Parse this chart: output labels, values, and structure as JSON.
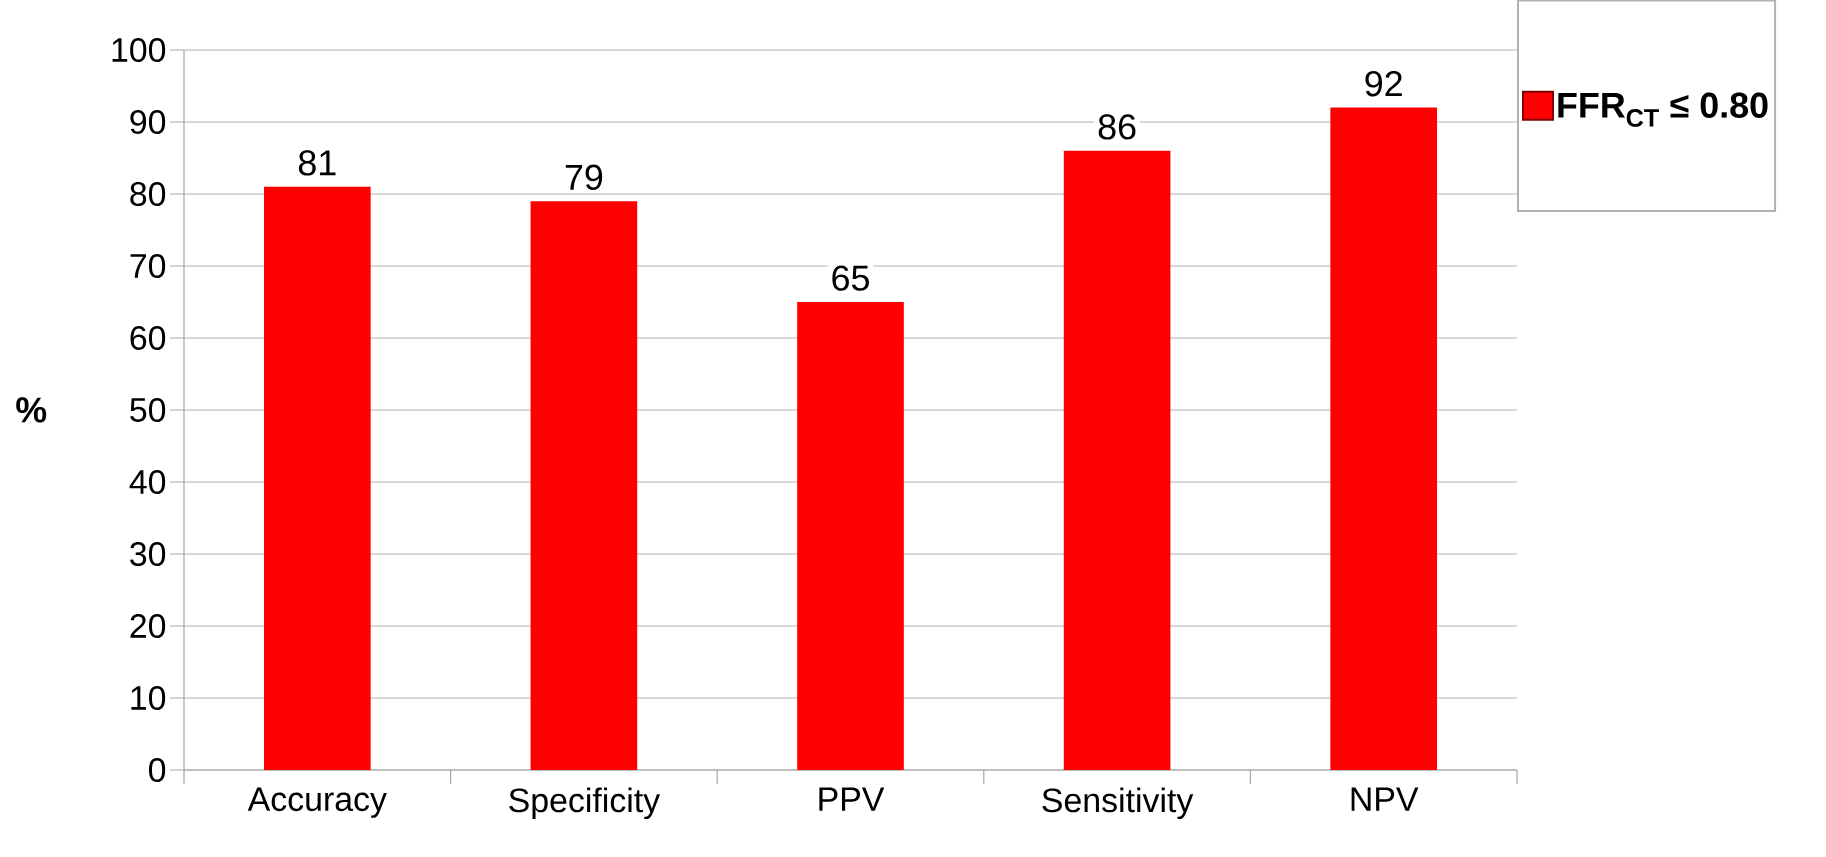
{
  "chart_data": {
    "type": "bar",
    "ylabel": "%",
    "categories": [
      "Accuracy",
      "Specificity",
      "PPV",
      "Sensitivity",
      "NPV"
    ],
    "series": [
      {
        "name": "FFR$_{CT}$ ≤ 0.80",
        "color": "#ff0000",
        "values": [
          81,
          79,
          65,
          86,
          92
        ]
      }
    ],
    "ylim": [
      0,
      100
    ],
    "yticks": [
      0,
      10,
      20,
      30,
      40,
      50,
      60,
      70,
      80,
      90,
      100
    ],
    "grid": "y",
    "legend": "right",
    "data_labels": true
  }
}
